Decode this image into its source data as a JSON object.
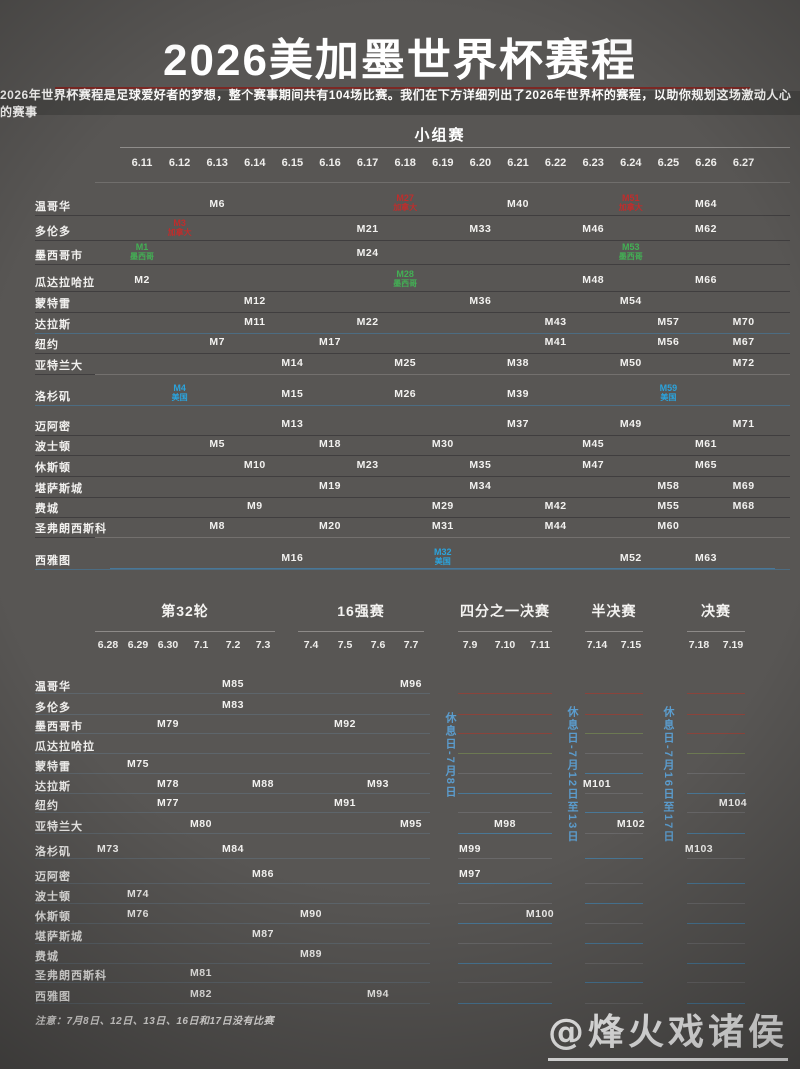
{
  "header": {
    "title": "2026美加墨世界杯赛程",
    "subtitle": "2026年世界杯赛程是足球爱好者的梦想，整个赛事期间共有104场比赛。我们在下方详细列出了2026年世界杯的赛程，以助你规划这场激动人心的赛事"
  },
  "colors": {
    "background": "#585654",
    "title_divider_red": "#7c2824",
    "canada_red": "#bf2d2c",
    "mexico_green": "#43b054",
    "usa_blue": "#2ba3dc",
    "restday_blue": "#5b9ccd"
  },
  "chart_data": {
    "type": "table",
    "title": "2026美加墨世界杯赛程",
    "group_stage": {
      "title": "小组赛",
      "dates": [
        "6.11",
        "6.12",
        "6.13",
        "6.14",
        "6.15",
        "6.16",
        "6.17",
        "6.18",
        "6.19",
        "6.20",
        "6.21",
        "6.22",
        "6.23",
        "6.24",
        "6.25",
        "6.26",
        "6.27"
      ],
      "rows": [
        {
          "city": "温哥华",
          "m": [
            [
              "M6",
              2
            ],
            [
              "M27",
              7,
              "canada",
              "加拿大"
            ],
            [
              "M40",
              10
            ],
            [
              "M51",
              13,
              "canada",
              "加拿大"
            ],
            [
              "M64",
              15
            ]
          ]
        },
        {
          "city": "多伦多",
          "m": [
            [
              "M3",
              1,
              "canada",
              "加拿大"
            ],
            [
              "M21",
              6
            ],
            [
              "M33",
              9
            ],
            [
              "M46",
              12
            ],
            [
              "M62",
              15
            ]
          ]
        },
        {
          "city": "墨西哥市",
          "m": [
            [
              "M1",
              0,
              "mexico",
              "墨西哥"
            ],
            [
              "M24",
              6
            ],
            [
              "M53",
              13,
              "mexico",
              "墨西哥"
            ]
          ]
        },
        {
          "city": "瓜达拉哈拉",
          "m": [
            [
              "M2",
              0
            ],
            [
              "M28",
              7,
              "mexico",
              "墨西哥"
            ],
            [
              "M48",
              12
            ],
            [
              "M66",
              15
            ]
          ]
        },
        {
          "city": "蒙特雷",
          "m": [
            [
              "M12",
              3
            ],
            [
              "M36",
              9
            ],
            [
              "M54",
              13
            ]
          ]
        },
        {
          "city": "达拉斯",
          "m": [
            [
              "M11",
              3
            ],
            [
              "M22",
              6
            ],
            [
              "M43",
              11
            ],
            [
              "M57",
              14
            ],
            [
              "M70",
              16
            ]
          ]
        },
        {
          "city": "纽约",
          "m": [
            [
              "M7",
              2
            ],
            [
              "M17",
              5
            ],
            [
              "M41",
              11
            ],
            [
              "M56",
              14
            ],
            [
              "M67",
              16
            ]
          ]
        },
        {
          "city": "亚特兰大",
          "m": [
            [
              "M14",
              4
            ],
            [
              "M25",
              7
            ],
            [
              "M38",
              10
            ],
            [
              "M50",
              13
            ],
            [
              "M72",
              16
            ]
          ]
        },
        {
          "city": "洛杉矶",
          "m": [
            [
              "M4",
              1,
              "usa",
              "美国"
            ],
            [
              "M15",
              4
            ],
            [
              "M26",
              7
            ],
            [
              "M39",
              10
            ],
            [
              "M59",
              14,
              "usa",
              "美国"
            ]
          ]
        },
        {
          "city": "迈阿密",
          "m": [
            [
              "M13",
              4
            ],
            [
              "M37",
              10
            ],
            [
              "M49",
              13
            ],
            [
              "M71",
              16
            ]
          ]
        },
        {
          "city": "波士顿",
          "m": [
            [
              "M5",
              2
            ],
            [
              "M18",
              5
            ],
            [
              "M30",
              8
            ],
            [
              "M45",
              12
            ],
            [
              "M61",
              15
            ]
          ]
        },
        {
          "city": "休斯顿",
          "m": [
            [
              "M10",
              3
            ],
            [
              "M23",
              6
            ],
            [
              "M35",
              9
            ],
            [
              "M47",
              12
            ],
            [
              "M65",
              15
            ]
          ]
        },
        {
          "city": "堪萨斯城",
          "m": [
            [
              "M19",
              5
            ],
            [
              "M34",
              9
            ],
            [
              "M58",
              14
            ],
            [
              "M69",
              16
            ]
          ]
        },
        {
          "city": "费城",
          "m": [
            [
              "M9",
              3
            ],
            [
              "M29",
              8
            ],
            [
              "M42",
              11
            ],
            [
              "M55",
              14
            ],
            [
              "M68",
              16
            ]
          ]
        },
        {
          "city": "圣弗朗西斯科",
          "m": [
            [
              "M8",
              2
            ],
            [
              "M20",
              5
            ],
            [
              "M31",
              8
            ],
            [
              "M44",
              11
            ],
            [
              "M60",
              14
            ]
          ]
        },
        {
          "city": "西雅图",
          "m": [
            [
              "M16",
              4
            ],
            [
              "M32",
              8,
              "usa",
              "美国"
            ],
            [
              "M52",
              13
            ],
            [
              "M63",
              15
            ]
          ]
        }
      ]
    },
    "knockout": {
      "sections": [
        {
          "title": "第32轮",
          "dates": [
            "6.28",
            "6.29",
            "6.30",
            "7.1",
            "7.2",
            "7.3"
          ]
        },
        {
          "title": "16强赛",
          "dates": [
            "7.4",
            "7.5",
            "7.6",
            "7.7"
          ]
        },
        {
          "title": "四分之一决赛",
          "dates": [
            "7.9",
            "7.10",
            "7.11"
          ]
        },
        {
          "title": "半决赛",
          "dates": [
            "7.14",
            "7.15"
          ]
        },
        {
          "title": "决赛",
          "dates": [
            "7.18",
            "7.19"
          ]
        }
      ],
      "rest_days": [
        "休息日-7月8日",
        "休息日-7月12日至13日",
        "休息日-7月16日至17日"
      ],
      "rows": [
        {
          "city": "温哥华",
          "m": [
            [
              "M85",
              4
            ],
            [
              "M96",
              9
            ]
          ]
        },
        {
          "city": "多伦多",
          "m": [
            [
              "M83",
              4
            ]
          ]
        },
        {
          "city": "墨西哥市",
          "m": [
            [
              "M79",
              2
            ],
            [
              "M92",
              7
            ]
          ]
        },
        {
          "city": "瓜达拉哈拉",
          "m": []
        },
        {
          "city": "蒙特雷",
          "m": [
            [
              "M75",
              1
            ]
          ]
        },
        {
          "city": "达拉斯",
          "m": [
            [
              "M78",
              2
            ],
            [
              "M88",
              5
            ],
            [
              "M93",
              8
            ],
            [
              "M101",
              13
            ]
          ]
        },
        {
          "city": "纽约",
          "m": [
            [
              "M77",
              2
            ],
            [
              "M91",
              7
            ],
            [
              "M104",
              16
            ]
          ]
        },
        {
          "city": "亚特兰大",
          "m": [
            [
              "M80",
              3
            ],
            [
              "M95",
              9
            ],
            [
              "M98",
              11
            ],
            [
              "M102",
              14
            ]
          ]
        },
        {
          "city": "洛杉矶",
          "m": [
            [
              "M73",
              0
            ],
            [
              "M84",
              4
            ],
            [
              "M99",
              10
            ],
            [
              "M103",
              15
            ]
          ]
        },
        {
          "city": "迈阿密",
          "m": [
            [
              "M86",
              5
            ],
            [
              "M97",
              10
            ]
          ]
        },
        {
          "city": "波士顿",
          "m": [
            [
              "M74",
              1
            ]
          ]
        },
        {
          "city": "休斯顿",
          "m": [
            [
              "M76",
              1
            ],
            [
              "M90",
              6
            ],
            [
              "M100",
              12
            ]
          ]
        },
        {
          "city": "堪萨斯城",
          "m": [
            [
              "M87",
              5
            ]
          ]
        },
        {
          "city": "费城",
          "m": [
            [
              "M89",
              6
            ]
          ]
        },
        {
          "city": "圣弗朗西斯科",
          "m": [
            [
              "M81",
              3
            ]
          ]
        },
        {
          "city": "西雅图",
          "m": [
            [
              "M82",
              3
            ],
            [
              "M94",
              8
            ]
          ]
        }
      ]
    }
  },
  "footer": {
    "note": "注意：7月8日、12日、13日、16日和17日没有比赛",
    "watermark": "@烽火戏诸侯"
  }
}
